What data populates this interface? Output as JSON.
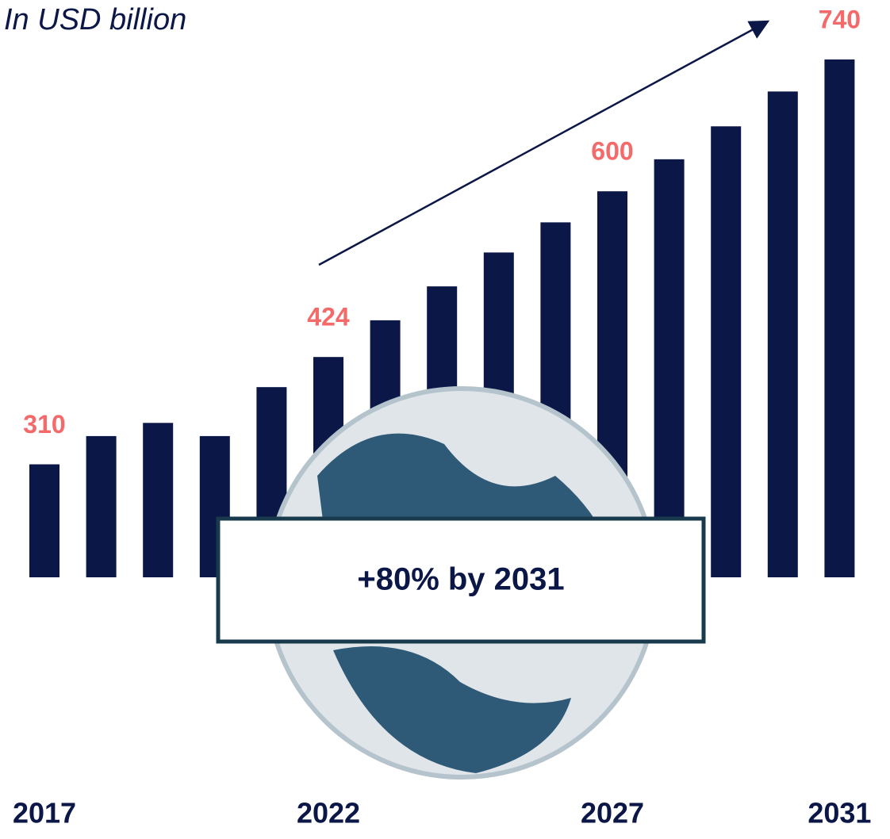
{
  "chart_data": {
    "type": "bar",
    "subtitle": "In USD billion",
    "categories": [
      "2017",
      null,
      null,
      null,
      null,
      "2022",
      null,
      null,
      null,
      null,
      "2027",
      null,
      null,
      null,
      "2031"
    ],
    "values": [
      310,
      340,
      354,
      340,
      392,
      424,
      463,
      499,
      535,
      567,
      600,
      634,
      669,
      706,
      740
    ],
    "color": "#0b1747",
    "label_color": "#f46a6a",
    "ylim": [
      190,
      740
    ],
    "annotation": "+80% by 2031"
  }
}
